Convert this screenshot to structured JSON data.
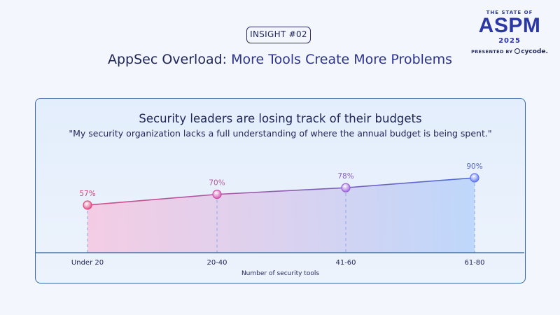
{
  "insight_badge": "INSIGHT #02",
  "title_prefix": "AppSec Overload:",
  "title_emphasis": "More Tools Create More Problems",
  "logo": {
    "top": "THE STATE OF",
    "main": "ASPM",
    "year": "2025",
    "presented_by": "PRESENTED BY",
    "brand": "cycode."
  },
  "card": {
    "title": "Security leaders are losing track of their budgets",
    "quote": "\"My security organization lacks a full understanding of where the annual budget is being spent.\""
  },
  "colors": {
    "line_start": "#d64b88",
    "line_end": "#4a6bd8",
    "fill_start": "#f5c6e0",
    "fill_end": "#bcd6fb",
    "axis": "#2e5c8e"
  },
  "chart_data": {
    "type": "line",
    "categories": [
      "Under 20",
      "20-40",
      "41-60",
      "61-80"
    ],
    "values": [
      57,
      70,
      78,
      90
    ],
    "labels": [
      "57%",
      "70%",
      "78%",
      "90%"
    ],
    "point_colors": [
      "#e0457f",
      "#cf4ba8",
      "#9a60d8",
      "#5a6ff0"
    ],
    "label_colors": [
      "#c8457a",
      "#b25d9d",
      "#8a60c2",
      "#5565c0"
    ],
    "xlabel": "Number of security tools",
    "ylabel": "",
    "ylim": [
      0,
      100
    ]
  }
}
